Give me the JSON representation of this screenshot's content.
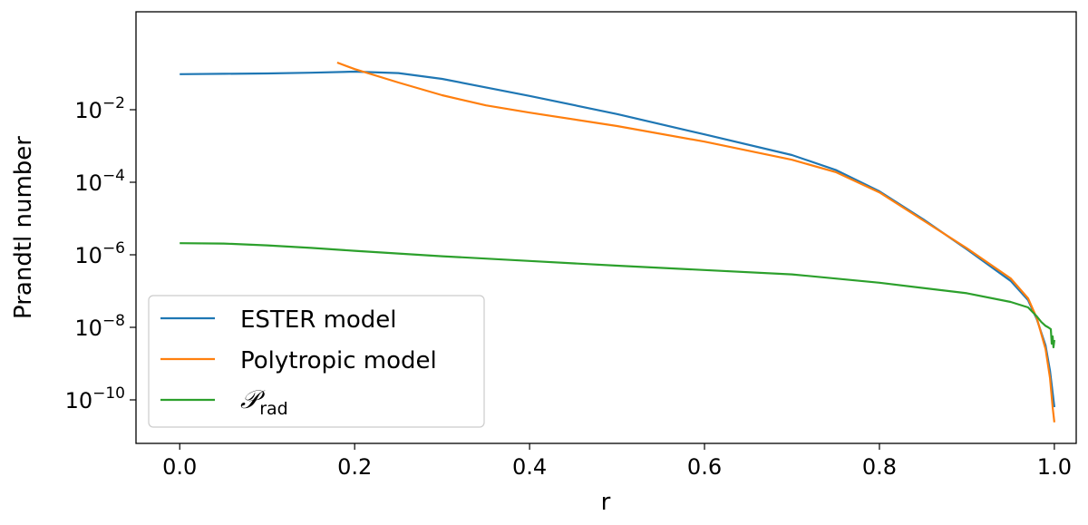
{
  "chart_data": {
    "type": "line",
    "xlabel": "r",
    "ylabel": "Prandtl number",
    "xlim": [
      -0.05,
      1.025
    ],
    "ylim_exponent": [
      -11.2,
      0.7
    ],
    "y_scale": "log",
    "x_ticks": [
      {
        "value": 0.0,
        "label": "0.0"
      },
      {
        "value": 0.2,
        "label": "0.2"
      },
      {
        "value": 0.4,
        "label": "0.4"
      },
      {
        "value": 0.6,
        "label": "0.6"
      },
      {
        "value": 0.8,
        "label": "0.8"
      },
      {
        "value": 1.0,
        "label": "1.0"
      }
    ],
    "y_ticks": [
      {
        "exponent": -2,
        "base": "10",
        "power": "−2"
      },
      {
        "exponent": -4,
        "base": "10",
        "power": "−4"
      },
      {
        "exponent": -6,
        "base": "10",
        "power": "−6"
      },
      {
        "exponent": -8,
        "base": "10",
        "power": "−8"
      },
      {
        "exponent": -10,
        "base": "10",
        "power": "−10"
      }
    ],
    "grid": false,
    "legend_position": "lower-left",
    "series": [
      {
        "name": "ESTER model",
        "color": "#1f77b4",
        "x": [
          0.0,
          0.05,
          0.1,
          0.15,
          0.2,
          0.25,
          0.3,
          0.4,
          0.5,
          0.6,
          0.7,
          0.75,
          0.8,
          0.85,
          0.9,
          0.95,
          0.97,
          0.98,
          0.99,
          0.995,
          0.998,
          1.0
        ],
        "y_log10": [
          -1.02,
          -1.01,
          -1.0,
          -0.98,
          -0.95,
          -0.99,
          -1.15,
          -1.62,
          -2.12,
          -2.68,
          -3.25,
          -3.66,
          -4.25,
          -5.02,
          -5.85,
          -6.72,
          -7.25,
          -7.78,
          -8.5,
          -9.2,
          -9.8,
          -10.2
        ]
      },
      {
        "name": "Polytropic model",
        "color": "#ff7f0e",
        "x": [
          0.18,
          0.2,
          0.25,
          0.3,
          0.35,
          0.4,
          0.5,
          0.6,
          0.7,
          0.75,
          0.8,
          0.85,
          0.9,
          0.95,
          0.97,
          0.98,
          0.99,
          0.995,
          0.998,
          1.0
        ],
        "y_log10": [
          -0.7,
          -0.88,
          -1.25,
          -1.6,
          -1.88,
          -2.08,
          -2.45,
          -2.88,
          -3.38,
          -3.72,
          -4.28,
          -5.05,
          -5.82,
          -6.65,
          -7.2,
          -7.75,
          -8.6,
          -9.4,
          -10.2,
          -10.62
        ]
      },
      {
        "name": "P_rad",
        "color": "#2ca02c",
        "x": [
          0.0,
          0.05,
          0.1,
          0.15,
          0.2,
          0.3,
          0.4,
          0.5,
          0.6,
          0.7,
          0.8,
          0.9,
          0.95,
          0.97,
          0.98,
          0.985,
          0.99,
          0.993,
          0.996,
          0.997,
          0.998,
          0.999,
          1.0
        ],
        "y_log10": [
          -5.68,
          -5.69,
          -5.74,
          -5.81,
          -5.89,
          -6.04,
          -6.17,
          -6.3,
          -6.42,
          -6.54,
          -6.77,
          -7.06,
          -7.3,
          -7.45,
          -7.7,
          -7.85,
          -7.96,
          -8.0,
          -8.05,
          -8.45,
          -8.25,
          -8.55,
          -8.35
        ]
      }
    ],
    "legend": [
      {
        "label": "ESTER model",
        "color": "#1f77b4"
      },
      {
        "label": "Polytropic model",
        "color": "#ff7f0e"
      },
      {
        "label_main": "𝒫",
        "label_sub": "rad",
        "color": "#2ca02c"
      }
    ]
  }
}
